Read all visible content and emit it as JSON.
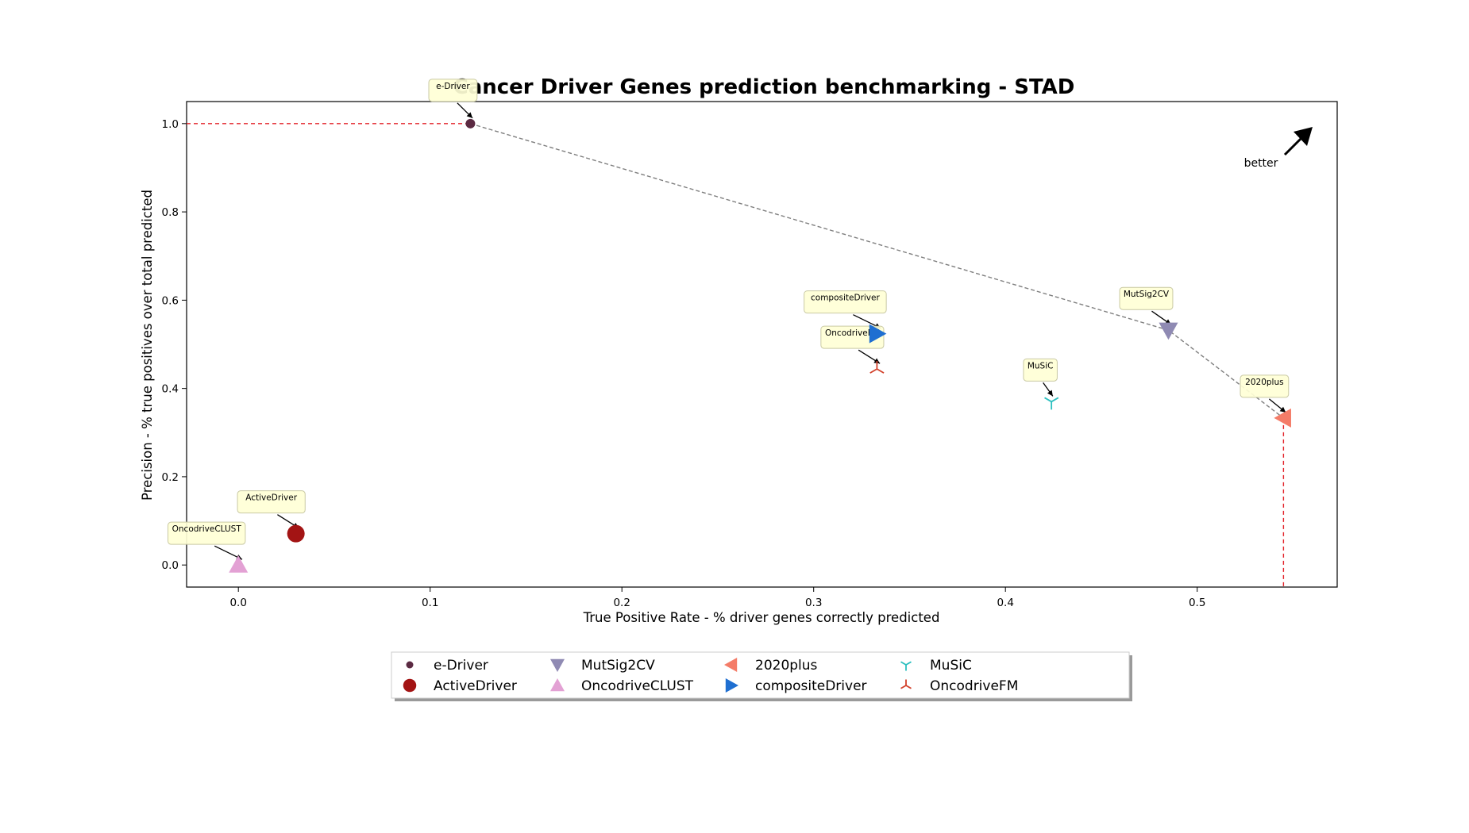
{
  "chart_data": {
    "type": "scatter",
    "title": "Cancer Driver Genes prediction benchmarking - STAD",
    "xlabel": "True Positive Rate - % driver genes correctly predicted",
    "ylabel": "Precision - % true positives over total predicted",
    "xlim": [
      -0.027,
      0.573
    ],
    "ylim": [
      -0.05,
      1.05
    ],
    "x_ticks": [
      "0.0",
      "0.1",
      "0.2",
      "0.3",
      "0.4",
      "0.5"
    ],
    "y_ticks": [
      "0.0",
      "0.2",
      "0.4",
      "0.6",
      "0.8",
      "1.0"
    ],
    "grid": false,
    "legend_position": "bottom-center",
    "better_label": "better",
    "series": [
      {
        "name": "e-Driver",
        "x": 0.121,
        "y": 1.0,
        "marker": "circle-small",
        "color": "#5b2a42"
      },
      {
        "name": "ActiveDriver",
        "x": 0.03,
        "y": 0.071,
        "marker": "circle-large",
        "color": "#a31414"
      },
      {
        "name": "MutSig2CV",
        "x": 0.485,
        "y": 0.532,
        "marker": "triangle-down",
        "color": "#8f8ab3"
      },
      {
        "name": "OncodriveCLUST",
        "x": 0.0,
        "y": 0.0,
        "marker": "triangle-up",
        "color": "#e3a1d4"
      },
      {
        "name": "2020plus",
        "x": 0.545,
        "y": 0.333,
        "marker": "triangle-left",
        "color": "#f47c68"
      },
      {
        "name": "compositeDriver",
        "x": 0.333,
        "y": 0.524,
        "marker": "triangle-right",
        "color": "#1f6fd1"
      },
      {
        "name": "MuSiC",
        "x": 0.424,
        "y": 0.37,
        "marker": "tri-down",
        "color": "#2bbfbf"
      },
      {
        "name": "OncodriveFM",
        "x": 0.333,
        "y": 0.444,
        "marker": "tri-up",
        "color": "#d2402a"
      }
    ],
    "pareto_front": [
      [
        0.121,
        1.0
      ],
      [
        0.485,
        0.532
      ],
      [
        0.545,
        0.333
      ]
    ]
  }
}
